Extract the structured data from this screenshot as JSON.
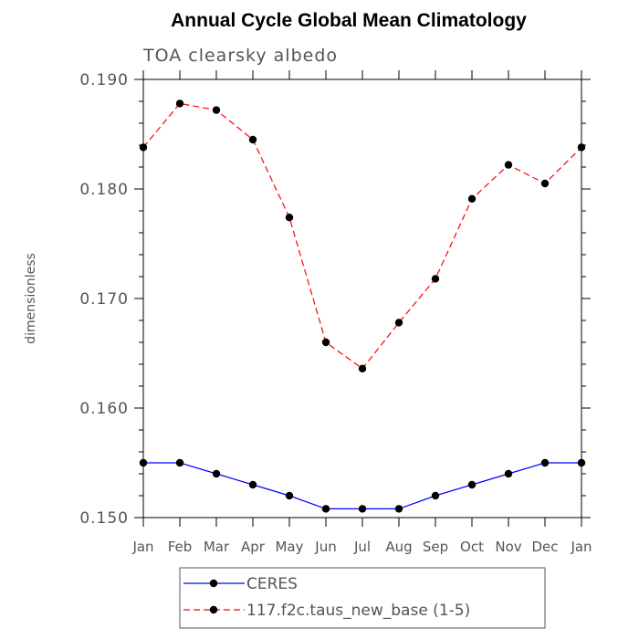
{
  "chart_data": {
    "type": "line",
    "title": "Annual Cycle Global Mean Climatology",
    "subtitle": "TOA clearsky albedo",
    "ylabel": "dimensionless",
    "xlabel": "",
    "categories": [
      "Jan",
      "Feb",
      "Mar",
      "Apr",
      "May",
      "Jun",
      "Jul",
      "Aug",
      "Sep",
      "Oct",
      "Nov",
      "Dec",
      "Jan"
    ],
    "ylim": [
      0.15,
      0.19
    ],
    "yticks": [
      "0.150",
      "0.160",
      "0.170",
      "0.180",
      "0.190"
    ],
    "grid": false,
    "legend_position": "bottom",
    "series": [
      {
        "name": "CERES",
        "color": "#0000ff",
        "line_style": "solid",
        "marker": "filled-circle",
        "values": [
          0.155,
          0.155,
          0.154,
          0.153,
          0.152,
          0.1508,
          0.1508,
          0.1508,
          0.152,
          0.153,
          0.154,
          0.155,
          0.155
        ]
      },
      {
        "name": "117.f2c.taus_new_base (1-5)",
        "color": "#ff0000",
        "line_style": "dashed",
        "marker": "filled-circle",
        "values": [
          0.1838,
          0.1878,
          0.1872,
          0.1845,
          0.1774,
          0.166,
          0.1636,
          0.1678,
          0.1718,
          0.1791,
          0.1822,
          0.1805,
          0.1838
        ]
      }
    ]
  }
}
